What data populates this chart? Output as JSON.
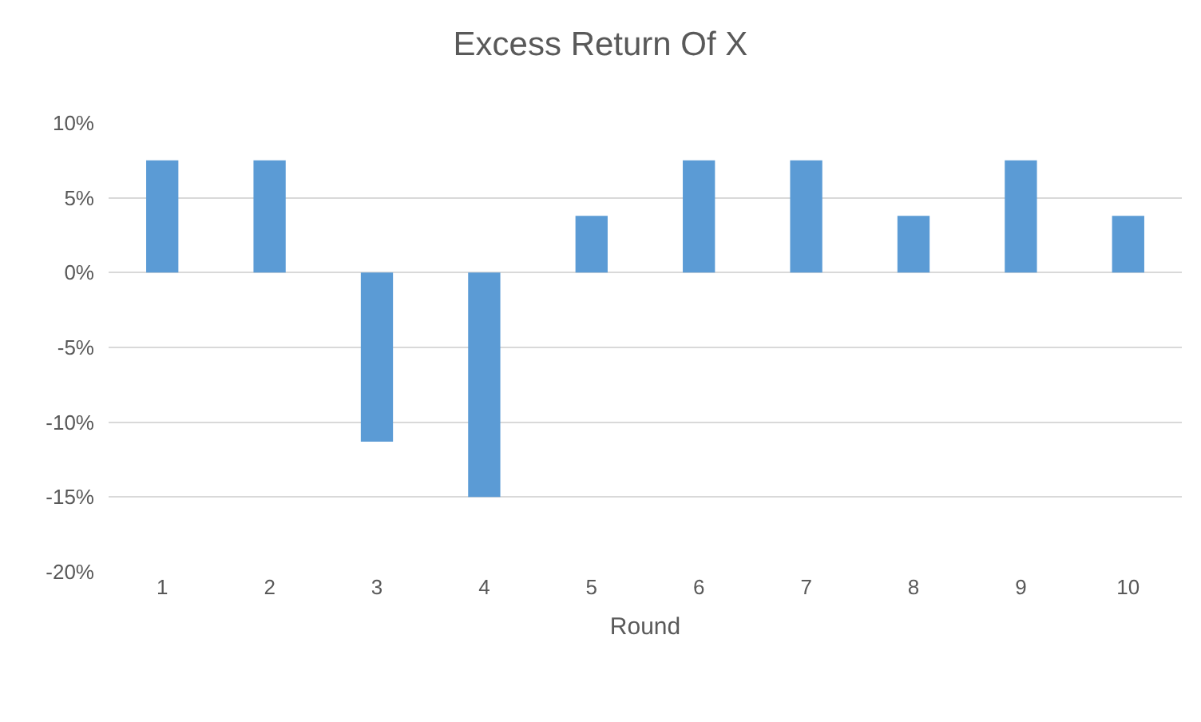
{
  "chart_data": {
    "type": "bar",
    "title": "Excess Return Of X",
    "xlabel": "Round",
    "categories": [
      "1",
      "2",
      "3",
      "4",
      "5",
      "6",
      "7",
      "8",
      "9",
      "10"
    ],
    "values": [
      7.5,
      7.5,
      -11.3,
      -15,
      3.8,
      7.5,
      7.5,
      3.8,
      7.5,
      3.8
    ],
    "color": "#5b9bd5",
    "ylim": [
      -20,
      10
    ],
    "yticks": [
      {
        "value": -20,
        "label": "-20%"
      },
      {
        "value": -15,
        "label": "-15%"
      },
      {
        "value": -10,
        "label": "-10%"
      },
      {
        "value": -5,
        "label": "-5%"
      },
      {
        "value": 0,
        "label": "0%"
      },
      {
        "value": 5,
        "label": "5%"
      },
      {
        "value": 10,
        "label": "10%"
      }
    ],
    "grid": "y"
  }
}
